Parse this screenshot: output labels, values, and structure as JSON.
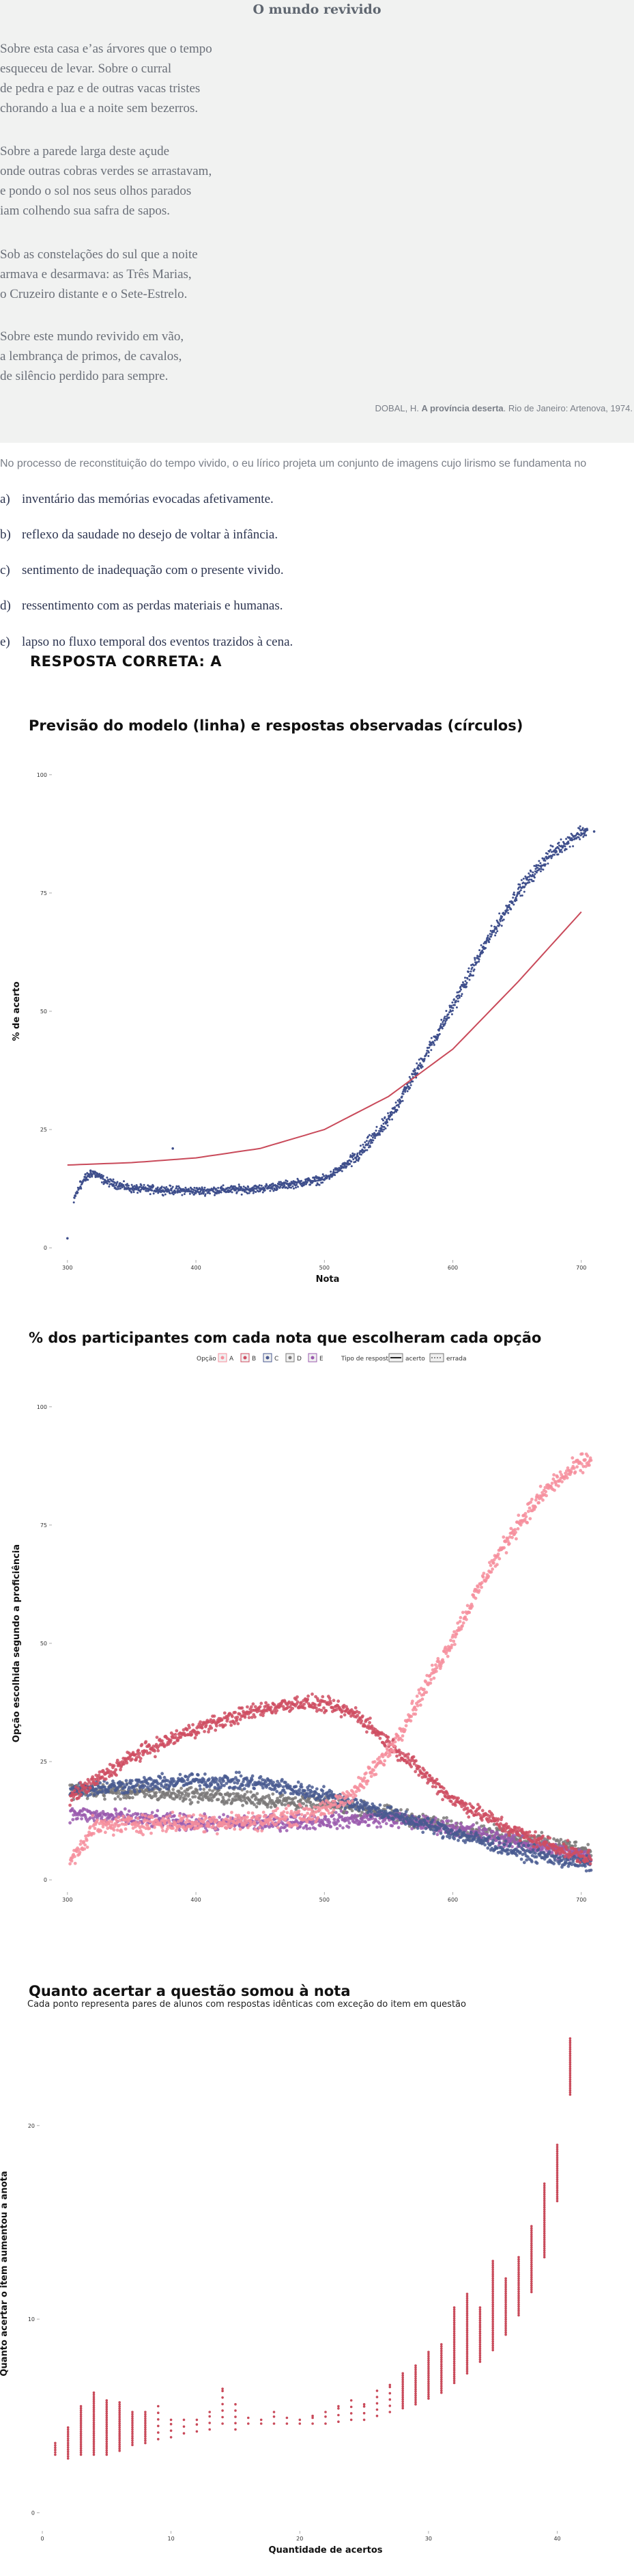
{
  "poem": {
    "title": "O mundo revivido",
    "stanzas": [
      [
        "Sobre esta casa e’as árvores que o tempo",
        "esqueceu de levar. Sobre o curral",
        "de pedra e paz e de outras vacas tristes",
        "chorando a lua e a noite sem bezerros."
      ],
      [
        "Sobre a parede larga deste açude",
        "onde outras cobras verdes se arrastavam,",
        "e pondo o sol nos seus olhos parados",
        "iam colhendo sua safra de sapos."
      ],
      [
        "Sob as constelações do sul que a noite",
        "armava e desarmava: as Três Marias,",
        "o Cruzeiro distante e o Sete-Estrelo."
      ],
      [
        "Sobre este mundo revivido em vão,",
        "a lembrança de primos, de cavalos,",
        "de silêncio perdido para sempre."
      ]
    ],
    "credit_plain": "DOBAL, H. ",
    "credit_bold": "A província deserta",
    "credit_rest": ". Rio de Janeiro: Artenova, 1974."
  },
  "question": {
    "stem": "No processo de reconstituição do tempo vivido, o eu lírico projeta um conjunto de imagens cujo lirismo se fundamenta no",
    "options": [
      {
        "letter": "a)",
        "text": "inventário das memórias evocadas afetivamente."
      },
      {
        "letter": "b)",
        "text": "reflexo da saudade no desejo de voltar à infância."
      },
      {
        "letter": "c)",
        "text": "sentimento de inadequação com o presente vivido."
      },
      {
        "letter": "d)",
        "text": "ressentimento com as perdas materiais e humanas."
      },
      {
        "letter": "e)",
        "text": "lapso no fluxo temporal dos eventos trazidos à cena."
      }
    ],
    "answer": "RESPOSTA CORRETA: A"
  },
  "colors": {
    "A": "#f68e9c",
    "B": "#cf4e62",
    "C": "#495a91",
    "D": "#7a7878",
    "E": "#9a5aae",
    "model_line": "#c94a5a",
    "points": "#3f4f8c",
    "pairs": "#c94a5a"
  },
  "chart_data": [
    {
      "type": "scatter",
      "title": "Previsão do modelo (linha) e respostas observadas (círculos)",
      "xlabel": "Nota",
      "ylabel": "% de acerto",
      "xlim": [
        290,
        715
      ],
      "ylim": [
        -2,
        102
      ],
      "xticks": [
        300,
        400,
        500,
        600,
        700
      ],
      "yticks": [
        0,
        25,
        50,
        75,
        100
      ],
      "model_line": [
        [
          300,
          17.5
        ],
        [
          350,
          18
        ],
        [
          400,
          19
        ],
        [
          450,
          21
        ],
        [
          500,
          25
        ],
        [
          550,
          32
        ],
        [
          600,
          42
        ],
        [
          650,
          56
        ],
        [
          700,
          71
        ]
      ],
      "observed_curve": [
        [
          300,
          2
        ],
        [
          306,
          11
        ],
        [
          312,
          14
        ],
        [
          320,
          16
        ],
        [
          330,
          14
        ],
        [
          350,
          12.5
        ],
        [
          400,
          12
        ],
        [
          450,
          12.5
        ],
        [
          500,
          14.5
        ],
        [
          525,
          19
        ],
        [
          550,
          27
        ],
        [
          575,
          39
        ],
        [
          600,
          51
        ],
        [
          625,
          64
        ],
        [
          650,
          75
        ],
        [
          675,
          83
        ],
        [
          700,
          88
        ],
        [
          710,
          88
        ]
      ],
      "outliers": [
        [
          382,
          21
        ]
      ]
    },
    {
      "type": "scatter",
      "title": "% dos participantes com cada nota que escolheram cada opção",
      "xlabel": "Nota",
      "ylabel": "Opção escolhida segundo a proficiência",
      "xlim": [
        290,
        715
      ],
      "ylim": [
        -2,
        102
      ],
      "xticks": [
        300,
        400,
        500,
        600,
        700
      ],
      "yticks": [
        0,
        25,
        50,
        75,
        100
      ],
      "legend_title": "Opção",
      "legend_placement": "top",
      "legend_type_title": "Tipo de resposta",
      "legend_type_entries": [
        "acerto",
        "errada"
      ],
      "series": [
        {
          "name": "A",
          "curve": [
            [
              300,
              3
            ],
            [
              320,
              11
            ],
            [
              350,
              12
            ],
            [
              400,
              12
            ],
            [
              450,
              12.5
            ],
            [
              500,
              14.5
            ],
            [
              525,
              19
            ],
            [
              550,
              27
            ],
            [
              575,
              39
            ],
            [
              600,
              51
            ],
            [
              625,
              64
            ],
            [
              650,
              75
            ],
            [
              675,
              83
            ],
            [
              700,
              88
            ],
            [
              710,
              89
            ]
          ]
        },
        {
          "name": "B",
          "curve": [
            [
              300,
              17
            ],
            [
              350,
              26
            ],
            [
              400,
              32
            ],
            [
              450,
              36
            ],
            [
              480,
              37.5
            ],
            [
              500,
              37
            ],
            [
              525,
              35
            ],
            [
              550,
              29
            ],
            [
              575,
              23
            ],
            [
              600,
              17
            ],
            [
              650,
              10
            ],
            [
              700,
              5
            ],
            [
              710,
              4
            ]
          ]
        },
        {
          "name": "C",
          "curve": [
            [
              300,
              19
            ],
            [
              350,
              20
            ],
            [
              400,
              21
            ],
            [
              450,
              20.5
            ],
            [
              500,
              18
            ],
            [
              550,
              14
            ],
            [
              600,
              10
            ],
            [
              650,
              6
            ],
            [
              700,
              3.5
            ],
            [
              710,
              3
            ]
          ]
        },
        {
          "name": "D",
          "curve": [
            [
              300,
              19
            ],
            [
              350,
              18.5
            ],
            [
              400,
              18
            ],
            [
              450,
              17
            ],
            [
              500,
              16
            ],
            [
              550,
              14
            ],
            [
              600,
              11
            ],
            [
              650,
              9
            ],
            [
              700,
              6.5
            ],
            [
              710,
              6
            ]
          ]
        },
        {
          "name": "E",
          "curve": [
            [
              300,
              14
            ],
            [
              350,
              13
            ],
            [
              400,
              12
            ],
            [
              450,
              12
            ],
            [
              500,
              12.5
            ],
            [
              550,
              13
            ],
            [
              600,
              11
            ],
            [
              650,
              8
            ],
            [
              700,
              5
            ],
            [
              710,
              4.5
            ]
          ]
        }
      ]
    },
    {
      "type": "scatter",
      "title": "Quanto acertar a questão somou à nota",
      "subtitle": "Cada ponto representa pares de alunos com respostas idênticas com exceção do item em questão",
      "xlabel": "Quantidade de acertos",
      "ylabel": "Quanto acertar o item aumentou a anota",
      "xlim": [
        0,
        44
      ],
      "ylim": [
        -0.8,
        25.5
      ],
      "xticks": [
        0,
        10,
        20,
        30,
        40
      ],
      "yticks": [
        0,
        10,
        20
      ],
      "columns": [
        {
          "x": 1,
          "min": 3,
          "max": 3.6
        },
        {
          "x": 2,
          "min": 2.8,
          "max": 4.4
        },
        {
          "x": 3,
          "min": 3,
          "max": 5.5
        },
        {
          "x": 4,
          "min": 3,
          "max": 6.2
        },
        {
          "x": 5,
          "min": 3,
          "max": 5.8
        },
        {
          "x": 6,
          "min": 3.2,
          "max": 5.7
        },
        {
          "x": 7,
          "min": 3.5,
          "max": 5.2
        },
        {
          "x": 8,
          "min": 3.6,
          "max": 5.2
        },
        {
          "x": 9,
          "min": 3.8,
          "max": 5.5
        },
        {
          "x": 10,
          "min": 3.9,
          "max": 4.8
        },
        {
          "x": 11,
          "min": 4.1,
          "max": 4.8
        },
        {
          "x": 12,
          "min": 4.2,
          "max": 4.8
        },
        {
          "x": 13,
          "min": 4.3,
          "max": 5.2
        },
        {
          "x": 14,
          "min": 4.6,
          "max": 6.4
        },
        {
          "x": 15,
          "min": 4.3,
          "max": 5.6
        },
        {
          "x": 16,
          "min": 4.6,
          "max": 4.9
        },
        {
          "x": 17,
          "min": 4.6,
          "max": 4.8
        },
        {
          "x": 18,
          "min": 4.6,
          "max": 5.2
        },
        {
          "x": 19,
          "min": 4.6,
          "max": 4.9
        },
        {
          "x": 20,
          "min": 4.6,
          "max": 4.8
        },
        {
          "x": 21,
          "min": 4.6,
          "max": 5.0
        },
        {
          "x": 22,
          "min": 4.6,
          "max": 5.2
        },
        {
          "x": 23,
          "min": 4.7,
          "max": 5.5
        },
        {
          "x": 24,
          "min": 4.8,
          "max": 5.8
        },
        {
          "x": 25,
          "min": 4.8,
          "max": 5.6
        },
        {
          "x": 26,
          "min": 5.0,
          "max": 6.3
        },
        {
          "x": 27,
          "min": 5.2,
          "max": 6.6
        },
        {
          "x": 28,
          "min": 5.4,
          "max": 7.2
        },
        {
          "x": 29,
          "min": 5.6,
          "max": 7.6
        },
        {
          "x": 30,
          "min": 5.9,
          "max": 8.3
        },
        {
          "x": 31,
          "min": 6.2,
          "max": 8.7
        },
        {
          "x": 32,
          "min": 6.7,
          "max": 10.6
        },
        {
          "x": 33,
          "min": 7.2,
          "max": 11.3
        },
        {
          "x": 34,
          "min": 7.8,
          "max": 10.6
        },
        {
          "x": 35,
          "min": 8.4,
          "max": 13.0
        },
        {
          "x": 36,
          "min": 9.2,
          "max": 12.1
        },
        {
          "x": 37,
          "min": 10.2,
          "max": 13.2
        },
        {
          "x": 38,
          "min": 11.4,
          "max": 14.8
        },
        {
          "x": 39,
          "min": 13.2,
          "max": 17.0
        },
        {
          "x": 40,
          "min": 16.1,
          "max": 19.0
        },
        {
          "x": 41,
          "min": 21.6,
          "max": 24.5
        }
      ]
    }
  ]
}
